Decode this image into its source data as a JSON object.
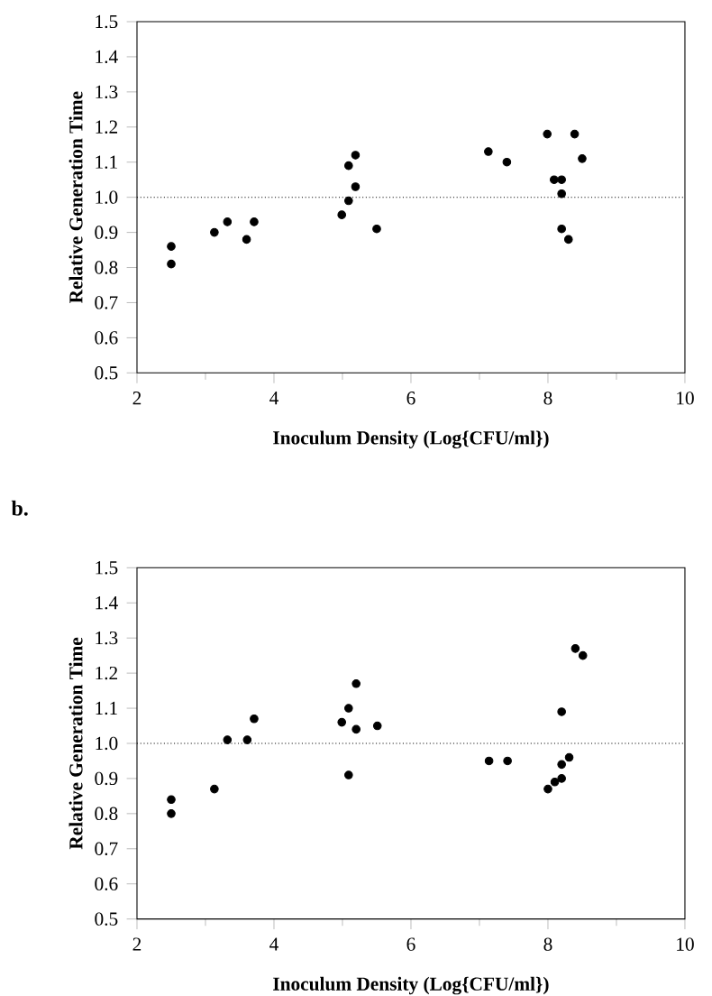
{
  "chart_data": [
    {
      "type": "scatter",
      "xlabel": "Inoculum Density  (Log{CFU/ml})",
      "ylabel": "Relative Generation Time",
      "marker": "circle",
      "xlim": [
        2,
        10
      ],
      "xticks": [
        2,
        4,
        6,
        8,
        10
      ],
      "ylim": [
        0.5,
        1.5
      ],
      "yticks": [
        0.5,
        0.6,
        0.7,
        0.8,
        0.9,
        {
          "value": 1,
          "label": "1.0"
        },
        1.1,
        1.2,
        1.3,
        1.4,
        1.5
      ],
      "ref_lines": [
        {
          "axis": "y",
          "value": 1,
          "line_style": "dotted"
        }
      ],
      "series": [
        {
          "color": "#000000",
          "x": [
            2.5,
            2.5,
            3.13,
            3.32,
            3.6,
            3.71,
            4.99,
            5.09,
            5.09,
            5.19,
            5.19,
            5.5,
            7.13,
            7.4,
            7.99,
            8.09,
            8.2,
            8.2,
            8.2,
            8.3,
            8.39,
            8.5
          ],
          "values": [
            0.86,
            0.81,
            0.9,
            0.93,
            0.88,
            0.93,
            0.95,
            0.99,
            1.09,
            1.12,
            1.03,
            0.91,
            1.13,
            1.1,
            1.18,
            1.05,
            1.05,
            1.01,
            0.91,
            0.88,
            1.18,
            1.11
          ]
        }
      ]
    },
    {
      "type": "scatter",
      "xlabel": "Inoculum Density  (Log{CFU/ml})",
      "ylabel": "Relative Generation Time",
      "marker": "circle",
      "annotations": [
        "b."
      ],
      "xlim": [
        2,
        10
      ],
      "xticks": [
        2,
        4,
        6,
        8,
        10
      ],
      "ylim": [
        0.5,
        1.5
      ],
      "yticks": [
        0.5,
        0.6,
        0.7,
        0.8,
        0.9,
        {
          "value": 1,
          "label": "1.0"
        },
        1.1,
        1.2,
        1.3,
        1.4,
        1.5
      ],
      "ref_lines": [
        {
          "axis": "y",
          "value": 1,
          "line_style": "dotted"
        }
      ],
      "series": [
        {
          "color": "#000000",
          "x": [
            2.5,
            2.5,
            3.13,
            3.32,
            3.61,
            3.71,
            4.99,
            5.09,
            5.09,
            5.2,
            5.2,
            5.51,
            7.14,
            7.41,
            8.0,
            8.1,
            8.2,
            8.2,
            8.2,
            8.31,
            8.4,
            8.51
          ],
          "values": [
            0.84,
            0.8,
            0.87,
            1.01,
            1.01,
            1.07,
            1.06,
            1.1,
            0.91,
            1.17,
            1.04,
            1.05,
            0.95,
            0.95,
            0.87,
            0.89,
            0.9,
            0.94,
            1.09,
            0.96,
            1.27,
            1.25
          ]
        }
      ]
    }
  ]
}
